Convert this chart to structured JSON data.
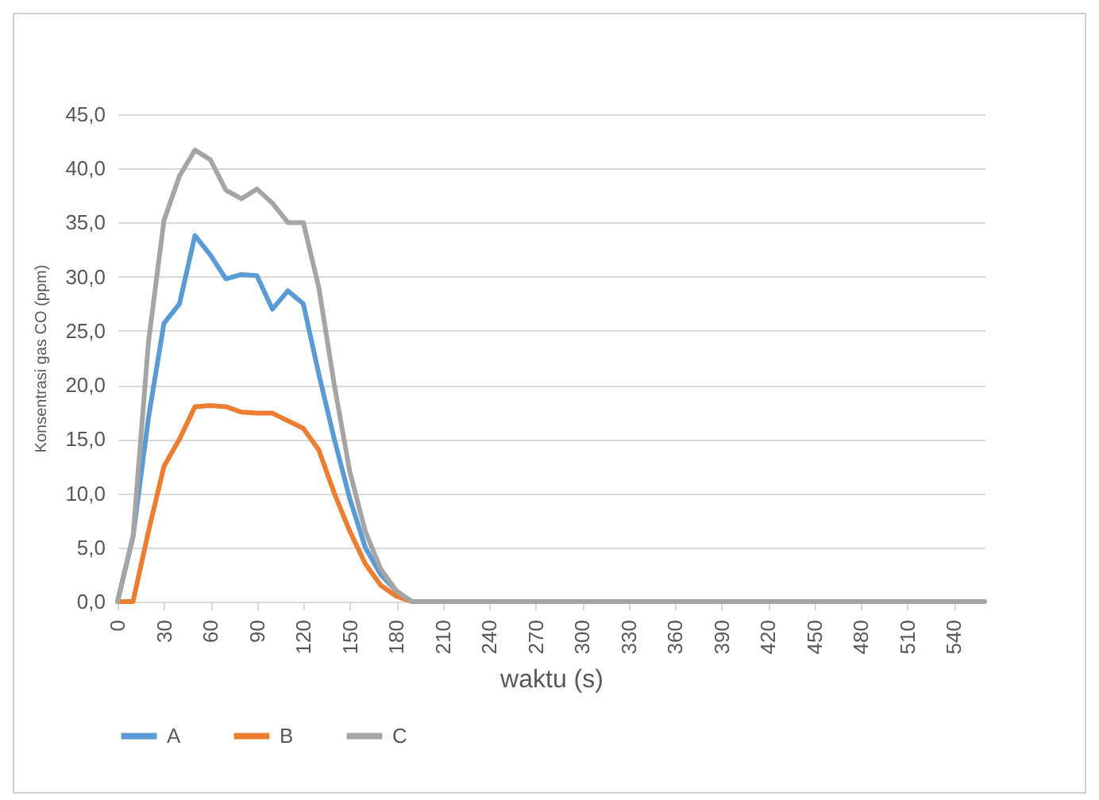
{
  "chart_data": {
    "type": "line",
    "xlabel": "waktu (s)",
    "ylabel": "Konsentrasi gas CO (ppm)",
    "x": [
      0,
      10,
      20,
      30,
      40,
      50,
      60,
      70,
      80,
      90,
      100,
      110,
      120,
      130,
      140,
      150,
      160,
      170,
      180,
      190,
      200,
      210,
      220,
      230,
      240,
      250,
      260,
      270,
      280,
      290,
      300,
      310,
      320,
      330,
      340,
      350,
      360,
      370,
      380,
      390,
      400,
      410,
      420,
      430,
      440,
      450,
      460,
      470,
      480,
      490,
      500,
      510,
      520,
      530,
      540,
      550,
      560
    ],
    "series": [
      {
        "name": "A",
        "color": "#5b9bd5",
        "values": [
          0,
          6,
          17,
          25.7,
          27.5,
          33.8,
          32,
          29.8,
          30.2,
          30.1,
          27,
          28.7,
          27.5,
          21,
          15,
          9.5,
          5,
          2.5,
          1,
          0,
          null,
          null,
          null,
          null,
          null,
          null,
          null,
          null,
          null,
          null,
          null,
          null,
          null,
          null,
          null,
          null,
          null,
          null,
          null,
          null,
          null,
          null,
          null,
          null,
          null,
          null,
          null,
          null,
          null,
          null,
          null,
          null,
          null,
          null,
          null,
          null,
          null
        ]
      },
      {
        "name": "B",
        "color": "#ed7d31",
        "values": [
          0,
          0,
          6.5,
          12.5,
          15,
          18,
          18.1,
          18,
          17.5,
          17.4,
          17.4,
          16.7,
          16,
          14,
          10,
          6.5,
          3.5,
          1.5,
          0.5,
          0,
          null,
          null,
          null,
          null,
          null,
          null,
          null,
          null,
          null,
          null,
          null,
          null,
          null,
          null,
          null,
          null,
          null,
          null,
          null,
          null,
          null,
          null,
          null,
          null,
          null,
          null,
          null,
          null,
          null,
          null,
          null,
          null,
          null,
          null,
          null,
          null,
          null
        ]
      },
      {
        "name": "C",
        "color": "#a5a5a5",
        "values": [
          0,
          6,
          24,
          35.2,
          39.3,
          41.7,
          40.8,
          38,
          37.2,
          38.1,
          36.8,
          35,
          35,
          29,
          20,
          12,
          6.5,
          3,
          1,
          0,
          0,
          0,
          0,
          0,
          0,
          0,
          0,
          0,
          0,
          0,
          0,
          0,
          0,
          0,
          0,
          0,
          0,
          0,
          0,
          0,
          0,
          0,
          0,
          0,
          0,
          0,
          0,
          0,
          0,
          0,
          0,
          0,
          0,
          0,
          0,
          0,
          0
        ]
      }
    ],
    "xlim": [
      0,
      560
    ],
    "xticks": [
      0,
      30,
      60,
      90,
      120,
      150,
      180,
      210,
      240,
      270,
      300,
      330,
      360,
      390,
      420,
      450,
      480,
      510,
      540
    ],
    "ylim": [
      0,
      45
    ],
    "yticks": [
      {
        "value": 0,
        "label": "0,0"
      },
      {
        "value": 5,
        "label": "5,0"
      },
      {
        "value": 10,
        "label": "10,0"
      },
      {
        "value": 15,
        "label": "15,0"
      },
      {
        "value": 20,
        "label": "20,0"
      },
      {
        "value": 25,
        "label": "25,0"
      },
      {
        "value": 30,
        "label": "30,0"
      },
      {
        "value": 35,
        "label": "35,0"
      },
      {
        "value": 40,
        "label": "40,0"
      },
      {
        "value": 45,
        "label": "45,0"
      }
    ],
    "grid": "y",
    "legend": "bottom",
    "marker": "none",
    "line_style": "solid"
  }
}
